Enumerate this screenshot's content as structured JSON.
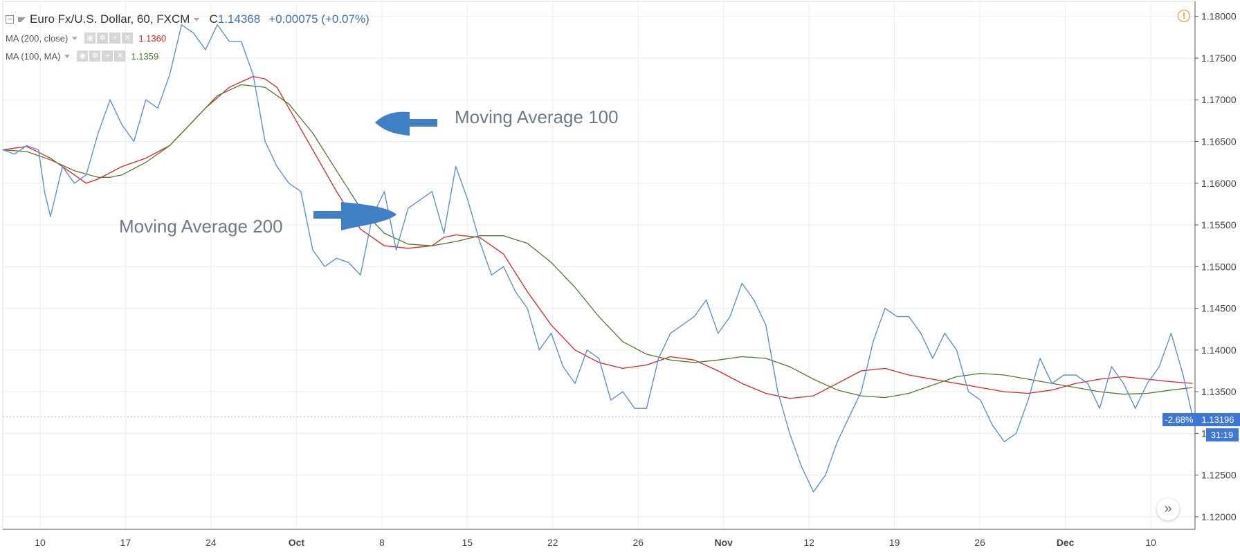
{
  "header": {
    "symbol_title": "Euro Fx/U.S. Dollar, 60, FXCM",
    "close_label": "C",
    "close_value": "1.14368",
    "change": "+0.00075 (+0.07%)"
  },
  "indicators": [
    {
      "label": "MA (200, close)",
      "value": "1.1360",
      "color": "#e02020"
    },
    {
      "label": "MA (100, MA)",
      "value": "1.1359",
      "color": "#4a7a2a"
    }
  ],
  "indicator_buttons": [
    "eye-icon",
    "gear-icon",
    "plus-icon",
    "close-icon"
  ],
  "annotations": {
    "ma100": "Moving Average 100",
    "ma200": "Moving Average 200"
  },
  "price_tags": {
    "change_pct": "-2.68%",
    "last_price": "1.13196",
    "countdown": "31:19"
  },
  "colors": {
    "price": "#5b8fd6",
    "ma200": "#e02020",
    "ma100": "#4a7a2a",
    "tag_bg": "#3d78d8",
    "arrow": "#3f7fc6",
    "grid": "#ececec",
    "warning": "#f08a1c"
  },
  "chart_data": {
    "type": "line",
    "x_ticks": [
      "10",
      "17",
      "24",
      "Oct",
      "8",
      "15",
      "22",
      "26",
      "Nov",
      "12",
      "19",
      "26",
      "Dec",
      "10"
    ],
    "y_ticks": [
      "1.18000",
      "1.17500",
      "1.17000",
      "1.16500",
      "1.16000",
      "1.15500",
      "1.15000",
      "1.14500",
      "1.14000",
      "1.13500",
      "1.13000",
      "1.12500",
      "1.12000"
    ],
    "ylim": [
      1.1185,
      1.1818
    ],
    "x_range": [
      0,
      100
    ],
    "series": [
      {
        "name": "Euro Fx/U.S. Dollar",
        "color": "#5b8fd6",
        "x": [
          0,
          1,
          2,
          3,
          3.5,
          4,
          5,
          6,
          7,
          8,
          9,
          10,
          11,
          12,
          13,
          14,
          15,
          16,
          17,
          18,
          19,
          20,
          21,
          22,
          23,
          24,
          25,
          26,
          27,
          28,
          29,
          30,
          31,
          32,
          33,
          34,
          35,
          36,
          37,
          38,
          39,
          40,
          41,
          42,
          43,
          44,
          45,
          46,
          47,
          48,
          49,
          50,
          51,
          52,
          53,
          54,
          55,
          56,
          57,
          58,
          59,
          60,
          61,
          62,
          63,
          64,
          65,
          66,
          67,
          68,
          69,
          70,
          71,
          72,
          73,
          74,
          75,
          76,
          77,
          78,
          79,
          80,
          81,
          82,
          83,
          84,
          85,
          86,
          87,
          88,
          89,
          90,
          91,
          92,
          93,
          94,
          95,
          96,
          97,
          98,
          99,
          99.8
        ],
        "y": [
          1.164,
          1.1635,
          1.1645,
          1.164,
          1.159,
          1.156,
          1.162,
          1.16,
          1.161,
          1.166,
          1.17,
          1.167,
          1.165,
          1.17,
          1.169,
          1.173,
          1.179,
          1.178,
          1.176,
          1.179,
          1.177,
          1.177,
          1.173,
          1.165,
          1.162,
          1.16,
          1.159,
          1.152,
          1.15,
          1.151,
          1.1505,
          1.149,
          1.156,
          1.159,
          1.152,
          1.157,
          1.158,
          1.159,
          1.154,
          1.162,
          1.158,
          1.153,
          1.149,
          1.15,
          1.147,
          1.145,
          1.14,
          1.142,
          1.138,
          1.136,
          1.14,
          1.139,
          1.134,
          1.135,
          1.133,
          1.133,
          1.139,
          1.142,
          1.143,
          1.144,
          1.146,
          1.142,
          1.144,
          1.148,
          1.146,
          1.143,
          1.135,
          1.13,
          1.126,
          1.123,
          1.125,
          1.129,
          1.132,
          1.135,
          1.141,
          1.145,
          1.144,
          1.144,
          1.142,
          1.139,
          1.142,
          1.14,
          1.135,
          1.134,
          1.131,
          1.129,
          1.13,
          1.134,
          1.139,
          1.136,
          1.137,
          1.137,
          1.136,
          1.133,
          1.138,
          1.136,
          1.133,
          1.136,
          1.138,
          1.142,
          1.137,
          1.132
        ]
      },
      {
        "name": "MA (200, close)",
        "color": "#e02020",
        "x": [
          0,
          2,
          4,
          6,
          7,
          8,
          10,
          12,
          14,
          15,
          17,
          19,
          21,
          22,
          23,
          24,
          26,
          28,
          30,
          32,
          34,
          36,
          37,
          38,
          40,
          42,
          44,
          46,
          48,
          50,
          52,
          54,
          56,
          58,
          60,
          62,
          64,
          66,
          68,
          70,
          72,
          74,
          76,
          78,
          80,
          82,
          84,
          86,
          88,
          90,
          92,
          94,
          96,
          98,
          99.8
        ],
        "y": [
          1.164,
          1.1644,
          1.163,
          1.161,
          1.16,
          1.1605,
          1.162,
          1.163,
          1.1645,
          1.166,
          1.169,
          1.1715,
          1.1728,
          1.1725,
          1.1715,
          1.169,
          1.164,
          1.159,
          1.1545,
          1.1525,
          1.1522,
          1.1525,
          1.1535,
          1.1538,
          1.1535,
          1.1515,
          1.147,
          1.143,
          1.14,
          1.1385,
          1.1378,
          1.1382,
          1.1392,
          1.1388,
          1.1375,
          1.136,
          1.1348,
          1.1342,
          1.1345,
          1.136,
          1.1375,
          1.1378,
          1.137,
          1.1365,
          1.136,
          1.1355,
          1.135,
          1.1348,
          1.1352,
          1.136,
          1.1365,
          1.1368,
          1.1365,
          1.1362,
          1.136
        ]
      },
      {
        "name": "MA (100, MA)",
        "color": "#4a7a2a",
        "x": [
          0,
          2,
          4,
          6,
          8,
          9,
          10,
          12,
          14,
          16,
          18,
          20,
          22,
          24,
          26,
          28,
          30,
          32,
          34,
          36,
          38,
          40,
          42,
          44,
          46,
          48,
          50,
          52,
          54,
          56,
          58,
          60,
          62,
          64,
          66,
          68,
          70,
          72,
          74,
          76,
          78,
          80,
          82,
          84,
          86,
          88,
          90,
          92,
          94,
          96,
          98,
          99.8
        ],
        "y": [
          1.164,
          1.1638,
          1.1628,
          1.1615,
          1.1607,
          1.1607,
          1.161,
          1.1625,
          1.1645,
          1.1675,
          1.1705,
          1.1718,
          1.1715,
          1.1695,
          1.166,
          1.1615,
          1.157,
          1.154,
          1.1527,
          1.1525,
          1.153,
          1.1537,
          1.1537,
          1.1528,
          1.1505,
          1.1475,
          1.144,
          1.141,
          1.1395,
          1.1388,
          1.1385,
          1.1388,
          1.1392,
          1.139,
          1.138,
          1.1365,
          1.1352,
          1.1345,
          1.1343,
          1.1348,
          1.1358,
          1.1368,
          1.1372,
          1.137,
          1.1365,
          1.136,
          1.1355,
          1.135,
          1.1347,
          1.1348,
          1.1352,
          1.1355
        ]
      }
    ]
  }
}
